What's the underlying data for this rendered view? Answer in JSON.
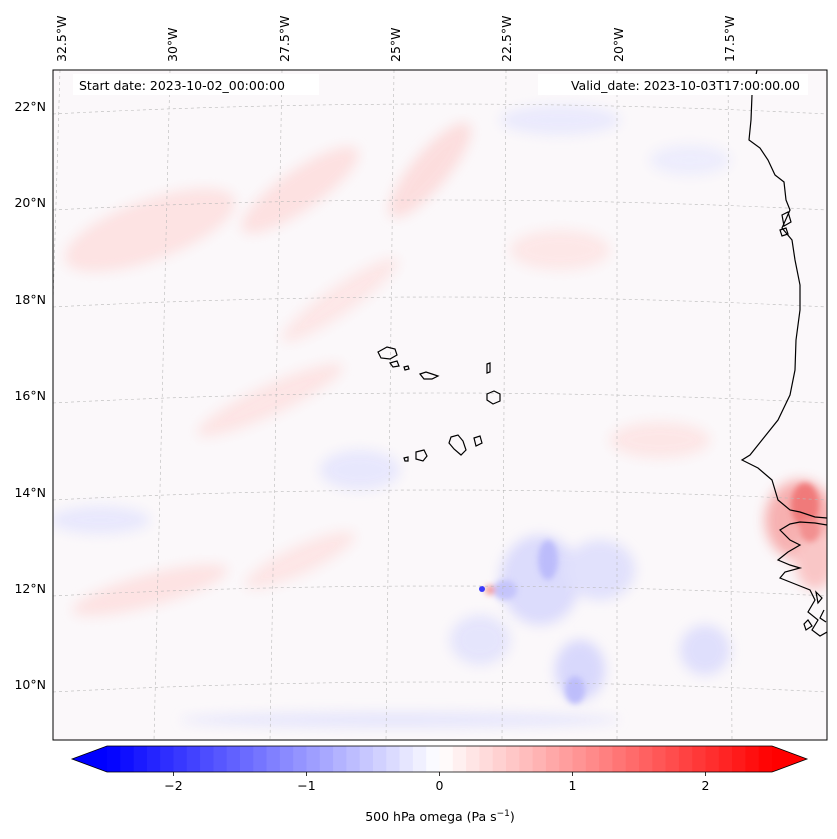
{
  "map": {
    "start_date": "Start date: 2023-10-02_00:00:00",
    "valid_date": "Valid_date: 2023-10-03T17:00:00.00",
    "longitude_labels": [
      "32.5°W",
      "30°W",
      "27.5°W",
      "25°W",
      "22.5°W",
      "20°W",
      "17.5°W"
    ],
    "latitude_labels": [
      "22°N",
      "20°N",
      "18°N",
      "16°N",
      "14°N",
      "12°N",
      "10°N"
    ],
    "field": "500 hPa omega",
    "colormap": "bwr",
    "extent_lon": [
      -32.7,
      -15.2
    ],
    "extent_lat": [
      8.9,
      22.8
    ]
  },
  "colorbar": {
    "label_main": "500 hPa omega (Pa s",
    "label_exp": "−1",
    "label_close": ")",
    "tick_labels": [
      "−2",
      "−1",
      "0",
      "1",
      "2"
    ],
    "ticks": [
      -2,
      -1,
      0,
      1,
      2
    ],
    "range": [
      -2.5,
      2.5
    ],
    "extend": "both",
    "colors": {
      "min": "#0000ff",
      "mid": "#ffffff",
      "max": "#ff0000"
    }
  }
}
